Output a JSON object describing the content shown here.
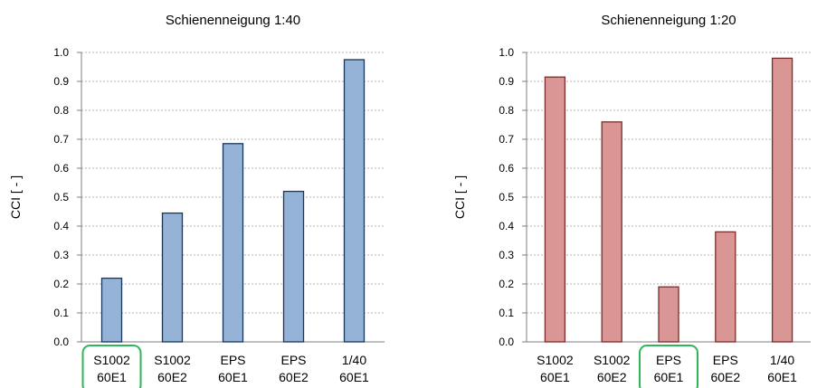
{
  "charts": [
    {
      "type": "bar",
      "title": "Schienenneigung 1:40",
      "ylabel": "CCI  [ - ]",
      "ylim": [
        0,
        1.0
      ],
      "yticks": [
        "0.0",
        "0.1",
        "0.2",
        "0.3",
        "0.4",
        "0.5",
        "0.6",
        "0.7",
        "0.8",
        "0.9",
        "1.0"
      ],
      "categories": [
        [
          "S1002",
          "60E1"
        ],
        [
          "S1002",
          "60E2"
        ],
        [
          "EPS",
          "60E1"
        ],
        [
          "EPS",
          "60E2"
        ],
        [
          "1/40",
          "60E1"
        ]
      ],
      "values": [
        0.22,
        0.445,
        0.685,
        0.52,
        0.975
      ],
      "highlighted_category": 0,
      "bar_fill": "#95b3d7",
      "bar_stroke": "#17375e",
      "highlight_color": "#2fb55a"
    },
    {
      "type": "bar",
      "title": "Schienenneigung 1:20",
      "ylabel": "CCI  [ - ]",
      "ylim": [
        0,
        1.0
      ],
      "yticks": [
        "0.0",
        "0.1",
        "0.2",
        "0.3",
        "0.4",
        "0.5",
        "0.6",
        "0.7",
        "0.8",
        "0.9",
        "1.0"
      ],
      "categories": [
        [
          "S1002",
          "60E1"
        ],
        [
          "S1002",
          "60E2"
        ],
        [
          "EPS",
          "60E1"
        ],
        [
          "EPS",
          "60E2"
        ],
        [
          "1/40",
          "60E1"
        ]
      ],
      "values": [
        0.915,
        0.76,
        0.19,
        0.38,
        0.98
      ],
      "highlighted_category": 2,
      "bar_fill": "#da9694",
      "bar_stroke": "#7b2c2b",
      "highlight_color": "#2fb55a"
    }
  ]
}
